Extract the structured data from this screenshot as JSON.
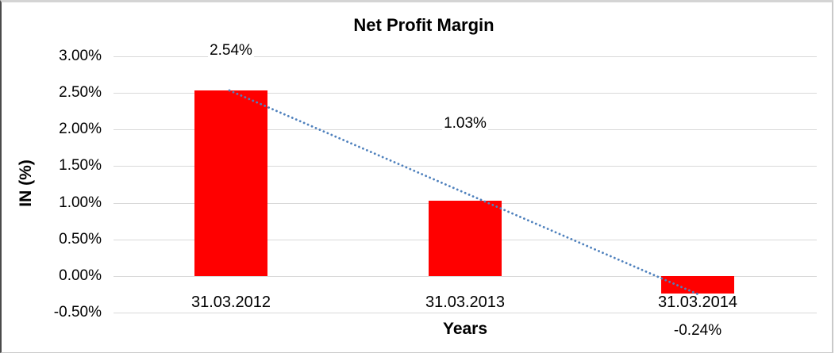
{
  "chart_data": {
    "type": "bar",
    "title": "Net Profit Margin",
    "xlabel": "Years",
    "ylabel": "IN (%)",
    "categories": [
      "31.03.2012",
      "31.03.2013",
      "31.03.2014"
    ],
    "values": [
      2.54,
      1.03,
      -0.24
    ],
    "data_labels": [
      "2.54%",
      "1.03%",
      "-0.24%"
    ],
    "yticks": [
      "3.00%",
      "2.50%",
      "2.00%",
      "1.50%",
      "1.00%",
      "0.50%",
      "0.00%",
      "-0.50%"
    ],
    "ytick_values": [
      3.0,
      2.5,
      2.0,
      1.5,
      1.0,
      0.5,
      0.0,
      -0.5
    ],
    "ylim": [
      -0.5,
      3.0
    ],
    "grid": true,
    "legend_position": "none",
    "bar_color": "#ff0000",
    "gridline_color": "#d9d9d9",
    "text_color": "#000000",
    "trendline": {
      "type": "linear",
      "style": "dotted",
      "color": "#4f81bd",
      "start_value": 2.54,
      "end_value": -0.24
    }
  }
}
